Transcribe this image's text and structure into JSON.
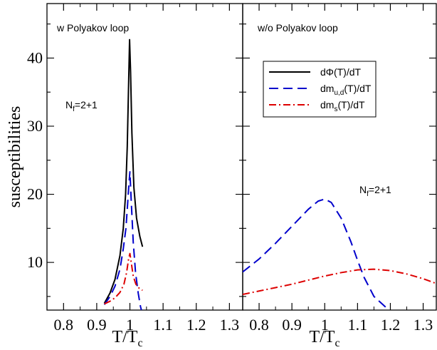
{
  "chart_data": {
    "type": "line",
    "ylabel": "susceptibilities",
    "xlabel": "T/T",
    "xlabel_sub": "c",
    "y_ticks": [
      "10",
      "20",
      "30",
      "40"
    ],
    "x_ticks": [
      "0.8",
      "0.9",
      "1",
      "1.1",
      "1.2",
      "1.3"
    ],
    "colors": {
      "dPhi": "#000000",
      "dm_ud": "#0000cc",
      "dm_s": "#dd0000"
    },
    "legend": {
      "placement": "top-right of right panel",
      "entries": [
        {
          "key": "dPhi",
          "text": "dΦ(T)/dT"
        },
        {
          "key": "dm_ud",
          "text_main": "dm",
          "text_sub": "u,d",
          "text_tail": "(T)/dT"
        },
        {
          "key": "dm_s",
          "text_main": "dm",
          "text_sub": "s",
          "text_tail": "(T)/dT"
        }
      ]
    },
    "panels": [
      {
        "title": "w Polyakov loop",
        "nf_main": "N",
        "nf_sub": "f",
        "nf_tail": "=2+1",
        "xlim": [
          0.75,
          1.34
        ],
        "ylim": [
          3,
          48
        ],
        "series": [
          {
            "key": "dPhi",
            "style": "solid",
            "x": [
              0.923,
              0.94,
              0.955,
              0.97,
              0.98,
              0.987,
              0.992,
              0.996,
              0.999,
              1.002,
              1.006,
              1.012,
              1.02,
              1.03,
              1.038
            ],
            "y": [
              4.0,
              5.5,
              7.5,
              11.0,
              15.0,
              20.0,
              27.0,
              36.0,
              42.7,
              38.0,
              29.0,
              21.0,
              16.5,
              13.8,
              12.3
            ]
          },
          {
            "key": "dm_ud",
            "style": "dashed",
            "x": [
              0.923,
              0.94,
              0.955,
              0.97,
              0.98,
              0.988,
              0.993,
              0.997,
              1.0,
              1.004,
              1.01,
              1.017,
              1.025,
              1.032,
              1.038
            ],
            "y": [
              3.8,
              5.0,
              6.5,
              9.0,
              12.0,
              15.0,
              18.5,
              21.5,
              23.3,
              19.0,
              13.0,
              8.5,
              5.5,
              3.5,
              2.4
            ]
          },
          {
            "key": "dm_s",
            "style": "dashdot",
            "x": [
              0.923,
              0.94,
              0.955,
              0.97,
              0.982,
              0.99,
              0.996,
              1.0,
              1.004,
              1.01,
              1.018,
              1.028,
              1.038
            ],
            "y": [
              3.9,
              4.3,
              4.8,
              5.6,
              6.8,
              8.5,
              10.5,
              11.3,
              10.0,
              8.0,
              6.8,
              6.2,
              5.9
            ]
          }
        ]
      },
      {
        "title": "w/o Polyakov loop",
        "nf_main": "N",
        "nf_sub": "f",
        "nf_tail": "=2+1",
        "xlim": [
          0.75,
          1.34
        ],
        "ylim": [
          3,
          48
        ],
        "series": [
          {
            "key": "dm_ud",
            "style": "dashed",
            "x": [
              0.75,
              0.8,
              0.85,
              0.9,
              0.95,
              0.98,
              1.0,
              1.02,
              1.05,
              1.08,
              1.1,
              1.12,
              1.15,
              1.2,
              1.25,
              1.28
            ],
            "y": [
              8.6,
              10.5,
              12.8,
              15.3,
              17.8,
              19.0,
              19.3,
              18.8,
              16.5,
              13.0,
              10.3,
              7.8,
              5.0,
              2.8,
              1.6,
              1.1
            ]
          },
          {
            "key": "dm_s",
            "style": "dashdot",
            "x": [
              0.75,
              0.8,
              0.85,
              0.9,
              0.95,
              1.0,
              1.05,
              1.1,
              1.15,
              1.2,
              1.25,
              1.3,
              1.34
            ],
            "y": [
              5.3,
              5.8,
              6.3,
              6.8,
              7.4,
              8.0,
              8.5,
              8.9,
              9.0,
              8.8,
              8.3,
              7.6,
              6.9
            ]
          }
        ]
      }
    ]
  }
}
